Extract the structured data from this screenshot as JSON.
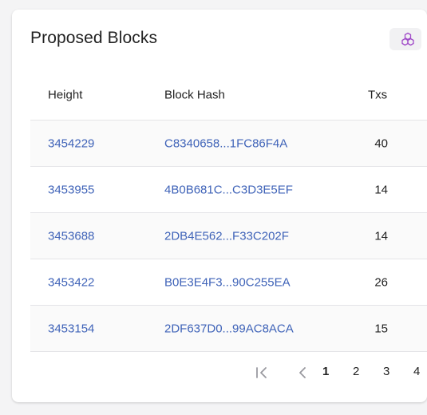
{
  "card": {
    "title": "Proposed Blocks"
  },
  "table": {
    "columns": {
      "height": "Height",
      "hash": "Block Hash",
      "txs": "Txs"
    },
    "rows": [
      {
        "height": "3454229",
        "hash": "C8340658...1FC86F4A",
        "txs": "40"
      },
      {
        "height": "3453955",
        "hash": "4B0B681C...C3D3E5EF",
        "txs": "14"
      },
      {
        "height": "3453688",
        "hash": "2DB4E562...F33C202F",
        "txs": "14"
      },
      {
        "height": "3453422",
        "hash": "B0E3E4F3...90C255EA",
        "txs": "26"
      },
      {
        "height": "3453154",
        "hash": "2DF637D0...99AC8ACA",
        "txs": "15"
      }
    ]
  },
  "pagination": {
    "pages": [
      "1",
      "2",
      "3",
      "4"
    ],
    "current_page": "1"
  },
  "colors": {
    "link": "#3f63b8",
    "badge_icon": "#a04bc8"
  }
}
